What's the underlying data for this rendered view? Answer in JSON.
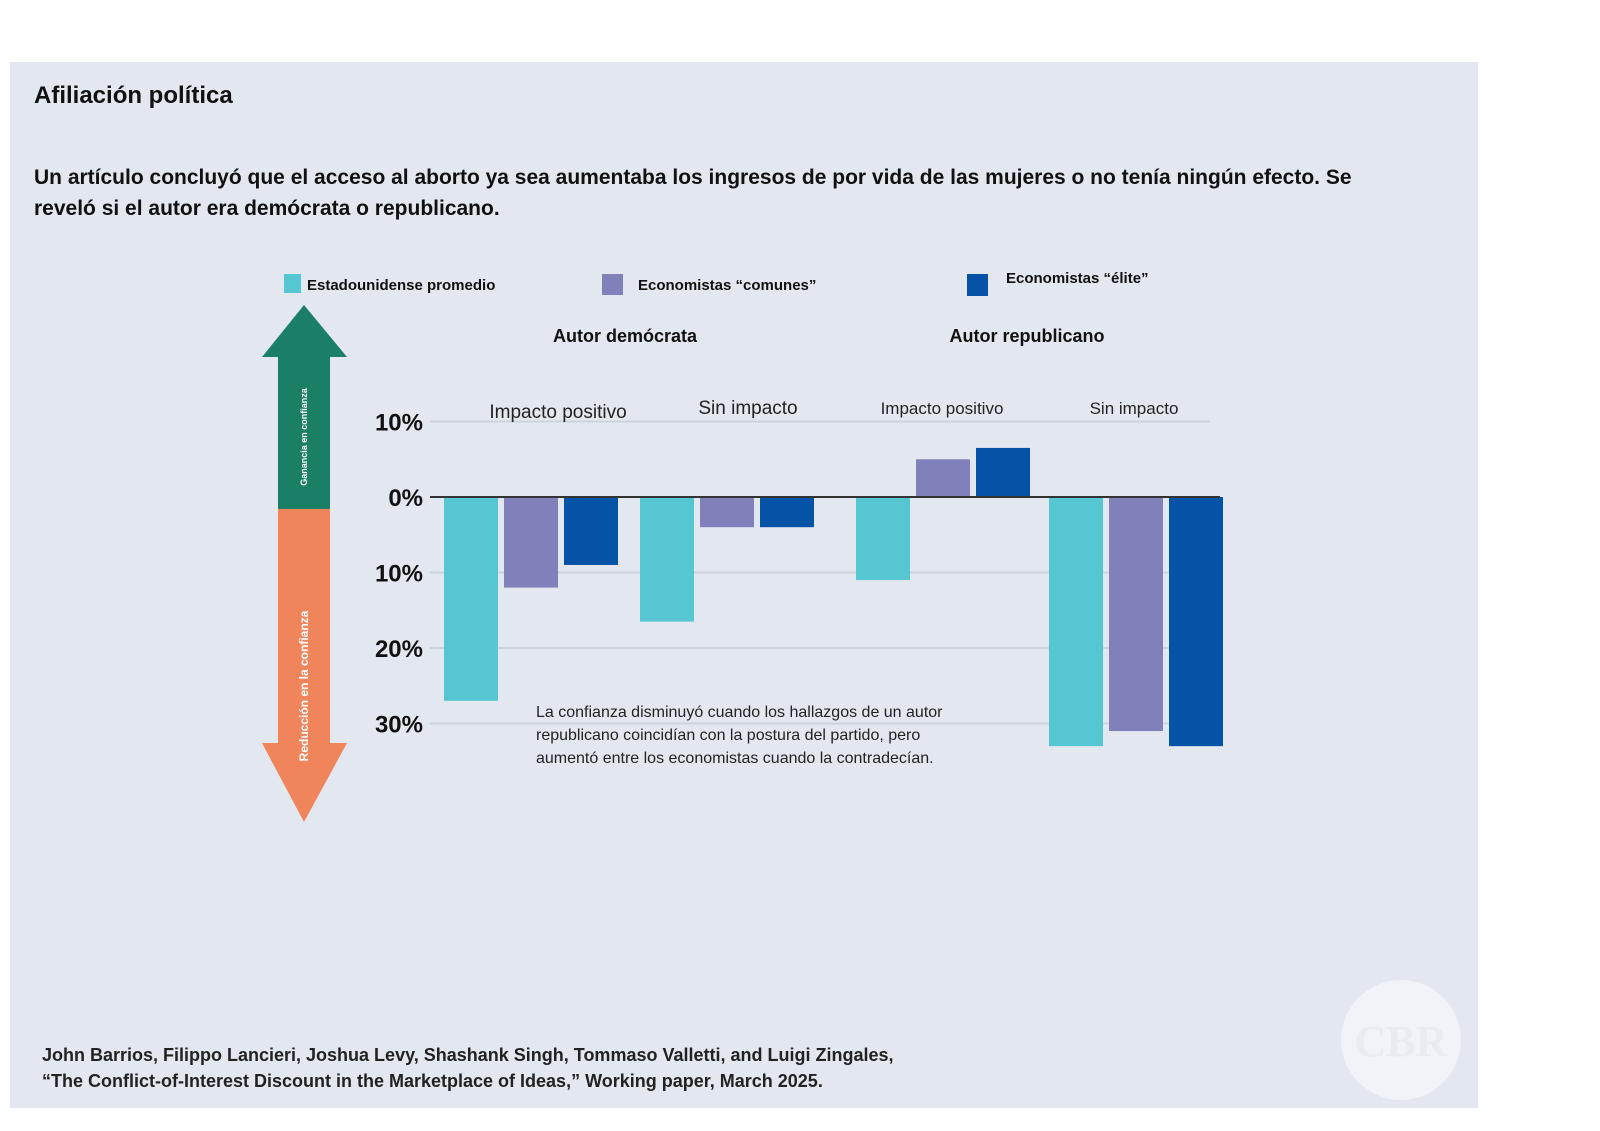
{
  "heading": "Afiliación política",
  "subtitle": "Un artículo concluyó que el acceso al aborto ya sea aumentaba los ingresos de por vida de las mujeres o no tenía ningún efecto. Se reveló si el autor era demócrata o republicano.",
  "arrow": {
    "up_label": "Ganancia en confianza",
    "down_label": "Reducción en la confianza",
    "up_color": "#1a7f64",
    "down_color": "#f0845a"
  },
  "logo": "CBR",
  "source": {
    "line1": "John Barrios, Filippo Lancieri, Joshua Levy, Shashank Singh, Tommaso Valletti, and Luigi Zingales,",
    "line2": "“The Conflict-of-Interest Discount in the Marketplace of Ideas,” Working paper, March 2025."
  },
  "chart_data": {
    "type": "bar",
    "groups": [
      {
        "label": "Autor demócrata",
        "subgroups": [
          "Impacto positivo",
          "Sin impacto"
        ]
      },
      {
        "label": "Autor republicano",
        "subgroups": [
          "Impacto positivo",
          "Sin impacto"
        ]
      }
    ],
    "categories": [
      "Impacto positivo",
      "Sin impacto",
      "Impacto positivo",
      "Sin impacto"
    ],
    "series": [
      {
        "name": "Estadounidense promedio",
        "color": "#56c6d2",
        "values": [
          -27,
          -16.5,
          -11,
          -33
        ]
      },
      {
        "name": "Economistas “comunes”",
        "color": "#8080bb",
        "values": [
          -12,
          -4,
          5,
          -31
        ]
      },
      {
        "name": "Economistas “élite”",
        "color": "#0453a6",
        "values": [
          -9,
          -4,
          6.5,
          -33
        ]
      }
    ],
    "yticks": [
      {
        "value": 10,
        "label": "10%"
      },
      {
        "value": 0,
        "label": "0%"
      },
      {
        "value": -10,
        "label": "10%"
      },
      {
        "value": -20,
        "label": "20%"
      },
      {
        "value": -30,
        "label": "30%"
      }
    ],
    "ylim": [
      -33,
      10
    ],
    "annotation": [
      "La confianza disminuyó cuando los hallazgos de un autor",
      "republicano coincidían con la postura del partido, pero",
      "aumentó entre los economistas cuando la contradecían."
    ],
    "legend_position": "top",
    "grid": true
  }
}
